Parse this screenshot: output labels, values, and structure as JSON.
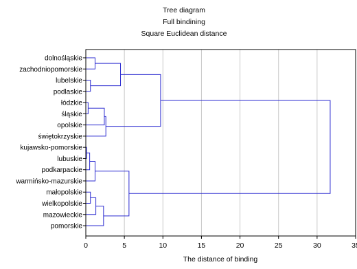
{
  "chart_data": {
    "type": "dendrogram",
    "title": "Tree diagram",
    "subtitles": [
      "Full bindining",
      "Square Euclidean distance"
    ],
    "xlabel": "The distance of binding",
    "xlim": [
      0,
      35
    ],
    "xticks": [
      0,
      5,
      10,
      15,
      20,
      25,
      30,
      35
    ],
    "grid": true,
    "colors": {
      "line": "#2b2bd0",
      "grid": "#c8c8c8",
      "axis": "#000000"
    },
    "leaves": [
      "dolnośląskie",
      "zachodniopomorskie",
      "lubelskie",
      "podlaskie",
      "łódzkie",
      "śląskie",
      "opolskie",
      "świętokrzyskie",
      "kujawsko-pomorskie",
      "lubuskie",
      "podkarpackie",
      "warmińsko-mazurskie",
      "małopolskie",
      "wielkopolskie",
      "mazowieckie",
      "pomorskie"
    ],
    "merges": [
      {
        "id": "c1",
        "left": 0,
        "right": 1,
        "height": 1.2
      },
      {
        "id": "c2",
        "left": 2,
        "right": 3,
        "height": 0.6
      },
      {
        "id": "c3",
        "left": "c1",
        "right": "c2",
        "height": 4.5
      },
      {
        "id": "c4",
        "left": 4,
        "right": 5,
        "height": 0.3
      },
      {
        "id": "c5",
        "left": "c4",
        "right": 6,
        "height": 2.4
      },
      {
        "id": "c6",
        "left": "c5",
        "right": 7,
        "height": 2.6
      },
      {
        "id": "c7",
        "left": "c3",
        "right": "c6",
        "height": 9.7
      },
      {
        "id": "c8",
        "left": 8,
        "right": 9,
        "height": 0.1
      },
      {
        "id": "c9",
        "left": "c8",
        "right": 10,
        "height": 0.5
      },
      {
        "id": "c10",
        "left": "c9",
        "right": 11,
        "height": 1.2
      },
      {
        "id": "c11",
        "left": 12,
        "right": 13,
        "height": 0.6
      },
      {
        "id": "c12",
        "left": "c11",
        "right": 14,
        "height": 1.3
      },
      {
        "id": "c13",
        "left": "c12",
        "right": 15,
        "height": 2.3
      },
      {
        "id": "c14",
        "left": "c10",
        "right": "c13",
        "height": 5.6
      },
      {
        "id": "c15",
        "left": "c7",
        "right": "c14",
        "height": 31.7
      }
    ]
  }
}
